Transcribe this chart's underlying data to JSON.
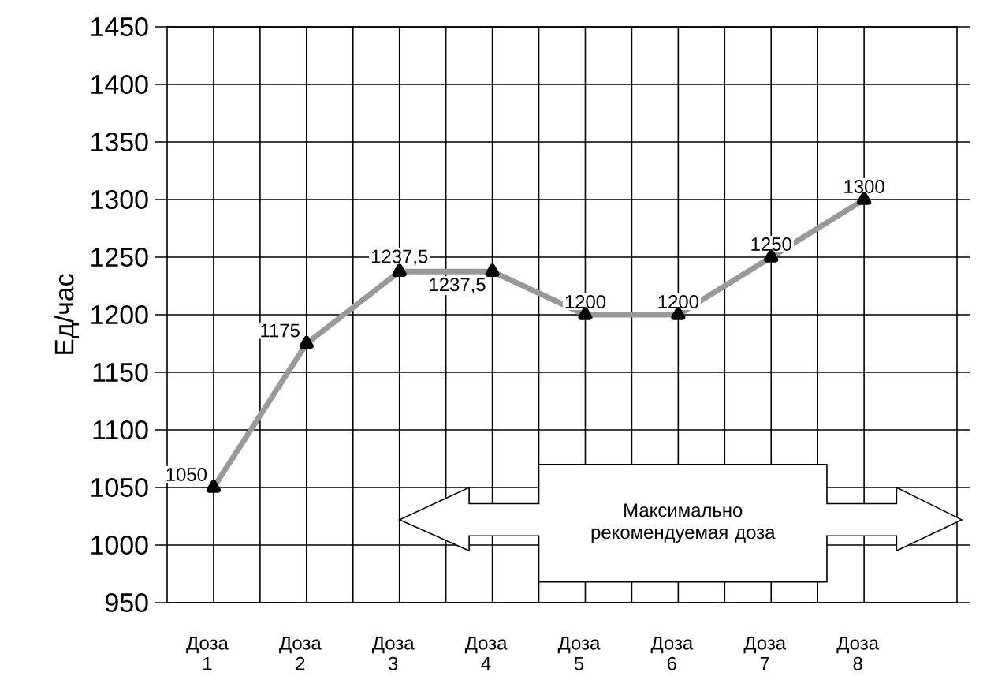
{
  "chart_data": {
    "type": "line",
    "ylabel": "Ед/час",
    "categories": [
      "Доза 1",
      "Доза 2",
      "Доза 3",
      "Доза 4",
      "Доза 5",
      "Доза 6",
      "Доза 7",
      "Доза 8"
    ],
    "series": [
      {
        "color": "#999999",
        "values": [
          1050,
          1175,
          1237.5,
          1237.5,
          1200,
          1200,
          1250,
          1300
        ],
        "value_labels": [
          "1050",
          "1175",
          "1237,5",
          "1237,5",
          "1200",
          "1200",
          "1250",
          "1300"
        ]
      }
    ],
    "ylim": [
      950,
      1450
    ],
    "yticks": [
      950,
      1000,
      1050,
      1100,
      1150,
      1200,
      1250,
      1300,
      1350,
      1400,
      1450
    ],
    "grid": true,
    "marker": "triangle",
    "line_style": "solid",
    "annotations": [
      "Максимально рекомендуемая доза"
    ]
  }
}
